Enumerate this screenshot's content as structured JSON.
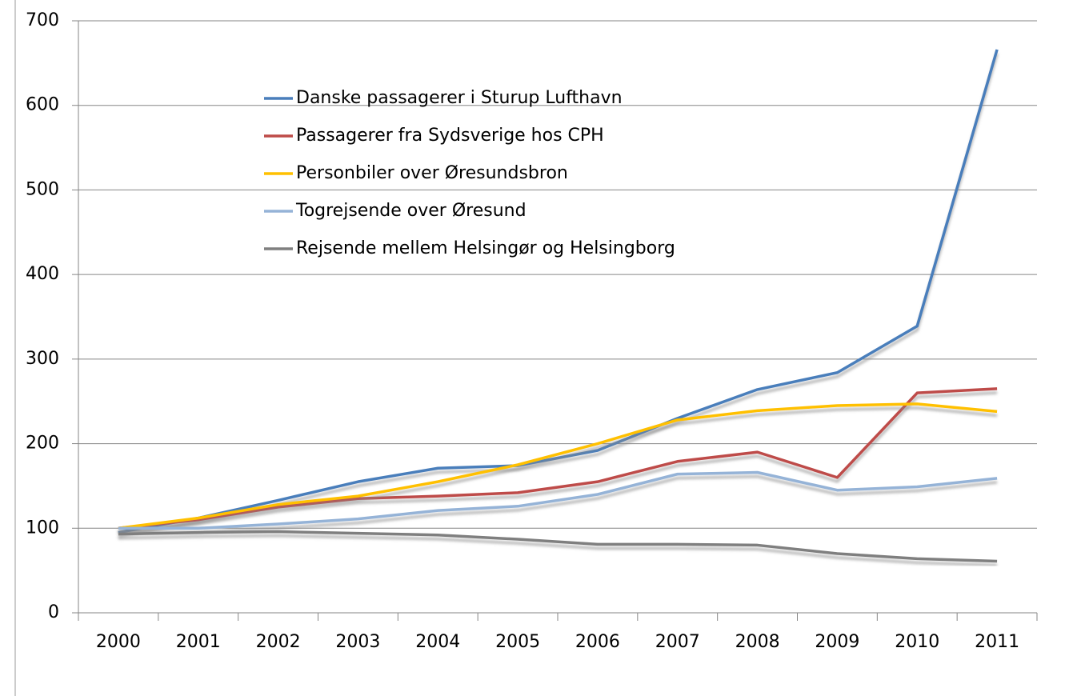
{
  "chart_data": {
    "type": "line",
    "categories": [
      "2000",
      "2001",
      "2002",
      "2003",
      "2004",
      "2005",
      "2006",
      "2007",
      "2008",
      "2009",
      "2010",
      "2011"
    ],
    "series": [
      {
        "name": "Danske passagerer i Sturup Lufthavn",
        "color": "#4a7ebb",
        "values": [
          95,
          112,
          133,
          155,
          171,
          174,
          192,
          230,
          264,
          284,
          339,
          666
        ]
      },
      {
        "name": "Passagerer fra Sydsverige hos CPH",
        "color": "#be4b48",
        "values": [
          100,
          110,
          125,
          135,
          138,
          142,
          155,
          179,
          190,
          160,
          260,
          265
        ]
      },
      {
        "name": "Personbiler over Øresundsbron",
        "color": "#ffc000",
        "values": [
          100,
          112,
          128,
          138,
          155,
          175,
          200,
          228,
          239,
          245,
          247,
          238
        ]
      },
      {
        "name": "Togrejsende over Øresund",
        "color": "#95b3d7",
        "values": [
          100,
          100,
          105,
          111,
          121,
          126,
          140,
          164,
          166,
          145,
          149,
          159
        ]
      },
      {
        "name": "Rejsende mellem Helsingør og Helsingborg",
        "color": "#7f7f7f",
        "values": [
          93,
          95,
          96,
          94,
          92,
          87,
          81,
          81,
          80,
          70,
          64,
          61
        ]
      }
    ],
    "ylim": [
      0,
      700
    ],
    "yticks": [
      0,
      100,
      200,
      300,
      400,
      500,
      600,
      700
    ],
    "grid": true,
    "legend": "top-left"
  }
}
